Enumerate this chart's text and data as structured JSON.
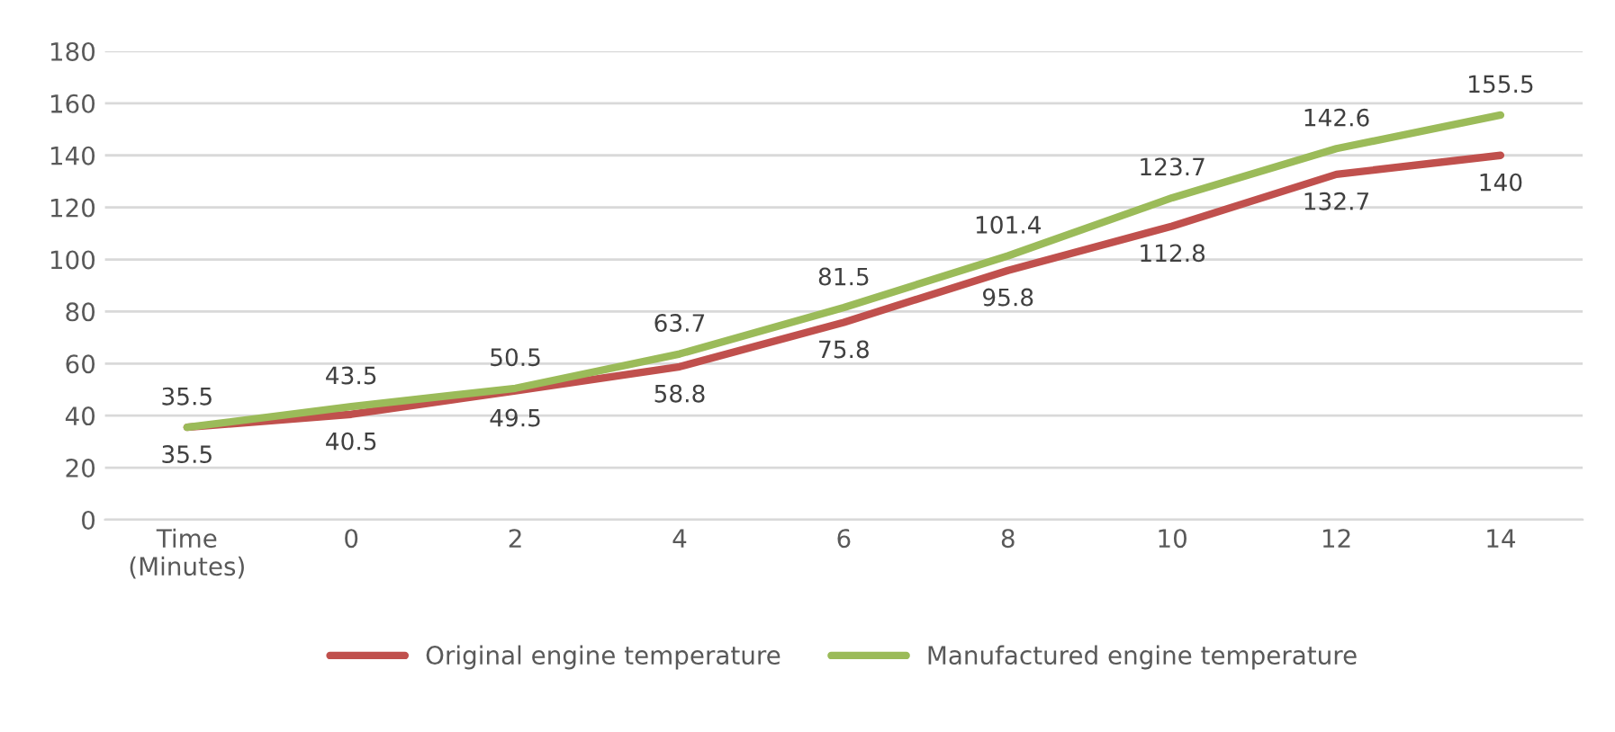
{
  "chart_data": {
    "type": "line",
    "categories": [
      "Time\n(Minutes)",
      "0",
      "2",
      "4",
      "6",
      "8",
      "10",
      "12",
      "14"
    ],
    "series": [
      {
        "name": "Original engine temperature",
        "color": "#c0504d",
        "values": [
          35.5,
          40.5,
          49.5,
          58.8,
          75.8,
          95.8,
          112.8,
          132.7,
          140
        ]
      },
      {
        "name": "Manufactured engine temperature",
        "color": "#9bbb59",
        "values": [
          35.5,
          43.5,
          50.5,
          63.7,
          81.5,
          101.4,
          123.7,
          142.6,
          155.5
        ]
      }
    ],
    "ylim": [
      0,
      180
    ],
    "yticks": [
      0,
      20,
      40,
      60,
      80,
      100,
      120,
      140,
      160,
      180
    ],
    "grid": "y",
    "legend": "bottom",
    "data_labels": true,
    "marker": "none",
    "line_style": "solid"
  }
}
